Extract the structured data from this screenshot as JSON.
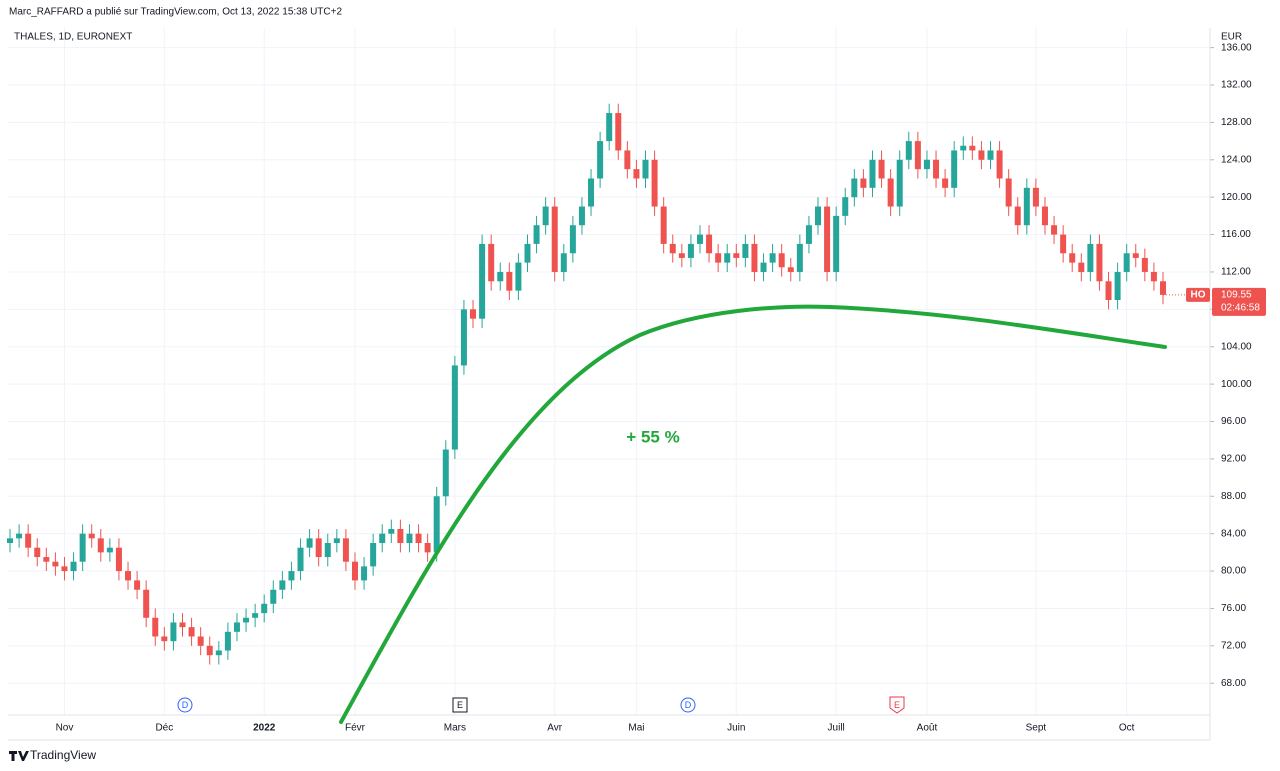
{
  "chart_data": {
    "type": "candlestick",
    "title": "Marc_RAFFARD a publié sur TradingView.com, Oct 13, 2022 15:38 UTC+2",
    "subtitle": "THALES, 1D, EURONEXT",
    "y_axis_label": "EUR",
    "annotation": "+ 55 %",
    "last_price_tag": "HO",
    "countdown": "02:46:58",
    "footer": "TradingView",
    "events": [
      {
        "label": "D"
      },
      {
        "label": "E"
      },
      {
        "label": "D"
      },
      {
        "label": "E"
      }
    ],
    "up_color": "#26a69a",
    "down_color": "#ef5350",
    "grid": true,
    "ylim": [
      64.6,
      138.1
    ],
    "yticks": [
      {
        "value": 68,
        "label": "68.00"
      },
      {
        "value": 72,
        "label": "72.00"
      },
      {
        "value": 76,
        "label": "76.00"
      },
      {
        "value": 80,
        "label": "80.00"
      },
      {
        "value": 84,
        "label": "84.00"
      },
      {
        "value": 88,
        "label": "88.00"
      },
      {
        "value": 92,
        "label": "92.00"
      },
      {
        "value": 96,
        "label": "96.00"
      },
      {
        "value": 100,
        "label": "100.00"
      },
      {
        "value": 104,
        "label": "104.00"
      },
      {
        "value": 108,
        "label": "108.00"
      },
      {
        "value": 112,
        "label": "112.00"
      },
      {
        "value": 116,
        "label": "116.00"
      },
      {
        "value": 120,
        "label": "120.00"
      },
      {
        "value": 124,
        "label": "124.00"
      },
      {
        "value": 128,
        "label": "128.00"
      },
      {
        "value": 132,
        "label": "132.00"
      },
      {
        "value": 136,
        "label": "136.00"
      }
    ],
    "categories": [
      null,
      null,
      null,
      null,
      null,
      null,
      "Nov",
      null,
      null,
      null,
      null,
      null,
      null,
      null,
      null,
      null,
      null,
      "Déc",
      null,
      null,
      null,
      null,
      null,
      null,
      null,
      null,
      null,
      null,
      "2022",
      null,
      null,
      null,
      null,
      null,
      null,
      null,
      null,
      null,
      "Févr",
      null,
      null,
      null,
      null,
      null,
      null,
      null,
      null,
      null,
      null,
      "Mars",
      null,
      null,
      null,
      null,
      null,
      null,
      null,
      null,
      null,
      null,
      "Avr",
      null,
      null,
      null,
      null,
      null,
      null,
      null,
      null,
      "Mai",
      null,
      null,
      null,
      null,
      null,
      null,
      null,
      null,
      null,
      null,
      "Juin",
      null,
      null,
      null,
      null,
      null,
      null,
      null,
      null,
      null,
      null,
      "Juill",
      null,
      null,
      null,
      null,
      null,
      null,
      null,
      null,
      null,
      "Août",
      null,
      null,
      null,
      null,
      null,
      null,
      null,
      null,
      null,
      null,
      null,
      "Sept",
      null,
      null,
      null,
      null,
      null,
      null,
      null,
      null,
      null,
      "Oct",
      null,
      null,
      null,
      null
    ],
    "open": [
      83,
      83.5,
      84,
      82.5,
      81.5,
      81,
      80.5,
      80,
      81,
      84,
      83.5,
      82,
      82.5,
      80,
      79,
      78,
      75,
      73,
      72.5,
      74.5,
      74,
      73,
      72,
      71,
      71.5,
      73.5,
      74.5,
      75,
      75.5,
      76.5,
      78,
      79,
      80,
      82.5,
      83.5,
      81.5,
      83,
      83.5,
      81,
      79,
      80.5,
      83,
      84,
      84.5,
      83,
      84,
      83,
      82,
      88,
      93,
      102,
      108,
      107,
      115,
      111,
      112,
      110,
      113,
      115,
      117,
      119,
      112,
      114,
      117,
      119,
      122,
      126,
      129,
      125,
      123,
      122,
      124,
      119,
      115,
      114,
      113.5,
      115,
      116,
      114,
      113,
      114,
      113.5,
      115,
      112,
      113,
      114,
      112.5,
      112,
      115,
      117,
      119,
      112,
      118,
      120,
      122,
      121,
      124,
      122,
      119,
      124,
      126,
      123,
      124,
      122,
      121,
      125,
      125.5,
      125,
      124,
      125,
      122,
      119,
      117,
      121,
      119,
      117,
      116,
      114,
      113,
      112,
      115,
      111,
      109,
      112,
      114,
      113.5,
      112,
      111
    ],
    "high": [
      84.5,
      85,
      85,
      83.5,
      82.5,
      82,
      81.5,
      82,
      85,
      85,
      84.5,
      83.5,
      83.5,
      81,
      80,
      79,
      76,
      74,
      75.5,
      75.5,
      75,
      74,
      73,
      72.5,
      74.5,
      75.5,
      76,
      76.5,
      77.5,
      79,
      80,
      81,
      83.5,
      84.5,
      84.5,
      84,
      84.5,
      84.5,
      82,
      81.5,
      84,
      85,
      85.5,
      85.5,
      85,
      85,
      84,
      89,
      94,
      103,
      109,
      109,
      116,
      116,
      113,
      113,
      114,
      116,
      118,
      120,
      120,
      115,
      118,
      120,
      123,
      127,
      130,
      130,
      126,
      124,
      125,
      125,
      120,
      116,
      115,
      116,
      117,
      117,
      115,
      115,
      115,
      116,
      116,
      114,
      115,
      115,
      113.5,
      116,
      118,
      120,
      120,
      119,
      121,
      123,
      123,
      125,
      125,
      123,
      125,
      127,
      127,
      125,
      125,
      123,
      126,
      126.5,
      126.5,
      126,
      126,
      126,
      123,
      120,
      122,
      122,
      120,
      118,
      117,
      115,
      114,
      116,
      116,
      112,
      113,
      115,
      115,
      114.5,
      113,
      112
    ],
    "low": [
      82,
      82.5,
      81.5,
      80.5,
      80,
      79.5,
      79,
      79,
      80,
      82.5,
      81,
      81,
      79,
      78,
      77,
      74,
      72,
      71.5,
      71.5,
      73,
      72,
      71,
      70,
      70,
      70.5,
      72.5,
      73.5,
      74,
      74.5,
      75.5,
      77,
      78,
      79,
      81.5,
      80.5,
      80.5,
      82,
      80,
      78,
      78,
      79.5,
      82,
      83,
      82,
      82,
      82,
      81,
      81,
      87,
      92,
      101,
      106,
      106,
      110,
      110,
      109,
      109,
      112,
      114,
      116,
      111,
      111,
      113,
      116,
      118,
      121,
      125,
      124,
      122,
      121,
      121,
      118,
      114,
      113,
      112.5,
      112.5,
      114,
      113,
      112,
      112,
      112.5,
      112.5,
      111,
      111,
      112,
      111.5,
      111,
      111,
      114,
      116,
      111,
      111,
      117,
      119,
      120,
      120,
      121,
      118,
      118,
      123,
      122,
      122,
      121,
      120,
      120,
      124,
      124,
      123,
      123,
      121,
      118,
      116,
      116,
      118,
      116,
      115,
      113,
      112,
      111,
      111,
      110,
      108,
      108,
      111,
      112.5,
      111,
      110,
      108.55
    ],
    "close": [
      83.5,
      84,
      82.5,
      81.5,
      81,
      80.5,
      80,
      81,
      84,
      83.5,
      82,
      82.5,
      80,
      79,
      78,
      75,
      73,
      72.5,
      74.5,
      74,
      73,
      72,
      71,
      71.5,
      73.5,
      74.5,
      75,
      75.5,
      76.5,
      78,
      79,
      80,
      82.5,
      83.5,
      81.5,
      83,
      83.5,
      81,
      79,
      80.5,
      83,
      84,
      84.5,
      83,
      84,
      83,
      82,
      88,
      93,
      102,
      108,
      107,
      115,
      111,
      112,
      110,
      113,
      115,
      117,
      119,
      112,
      114,
      117,
      119,
      122,
      126,
      129,
      125,
      123,
      122,
      124,
      119,
      115,
      114,
      113.5,
      115,
      116,
      114,
      113,
      114,
      113.5,
      115,
      112,
      113,
      114,
      112.5,
      112,
      115,
      117,
      119,
      112,
      118,
      120,
      122,
      121,
      124,
      122,
      119,
      124,
      126,
      123,
      124,
      122,
      121,
      125,
      125.5,
      125,
      124,
      125,
      122,
      119,
      117,
      121,
      119,
      117,
      116,
      114,
      113,
      112,
      115,
      111,
      109,
      112,
      114,
      113.5,
      112,
      111,
      109.55
    ]
  }
}
